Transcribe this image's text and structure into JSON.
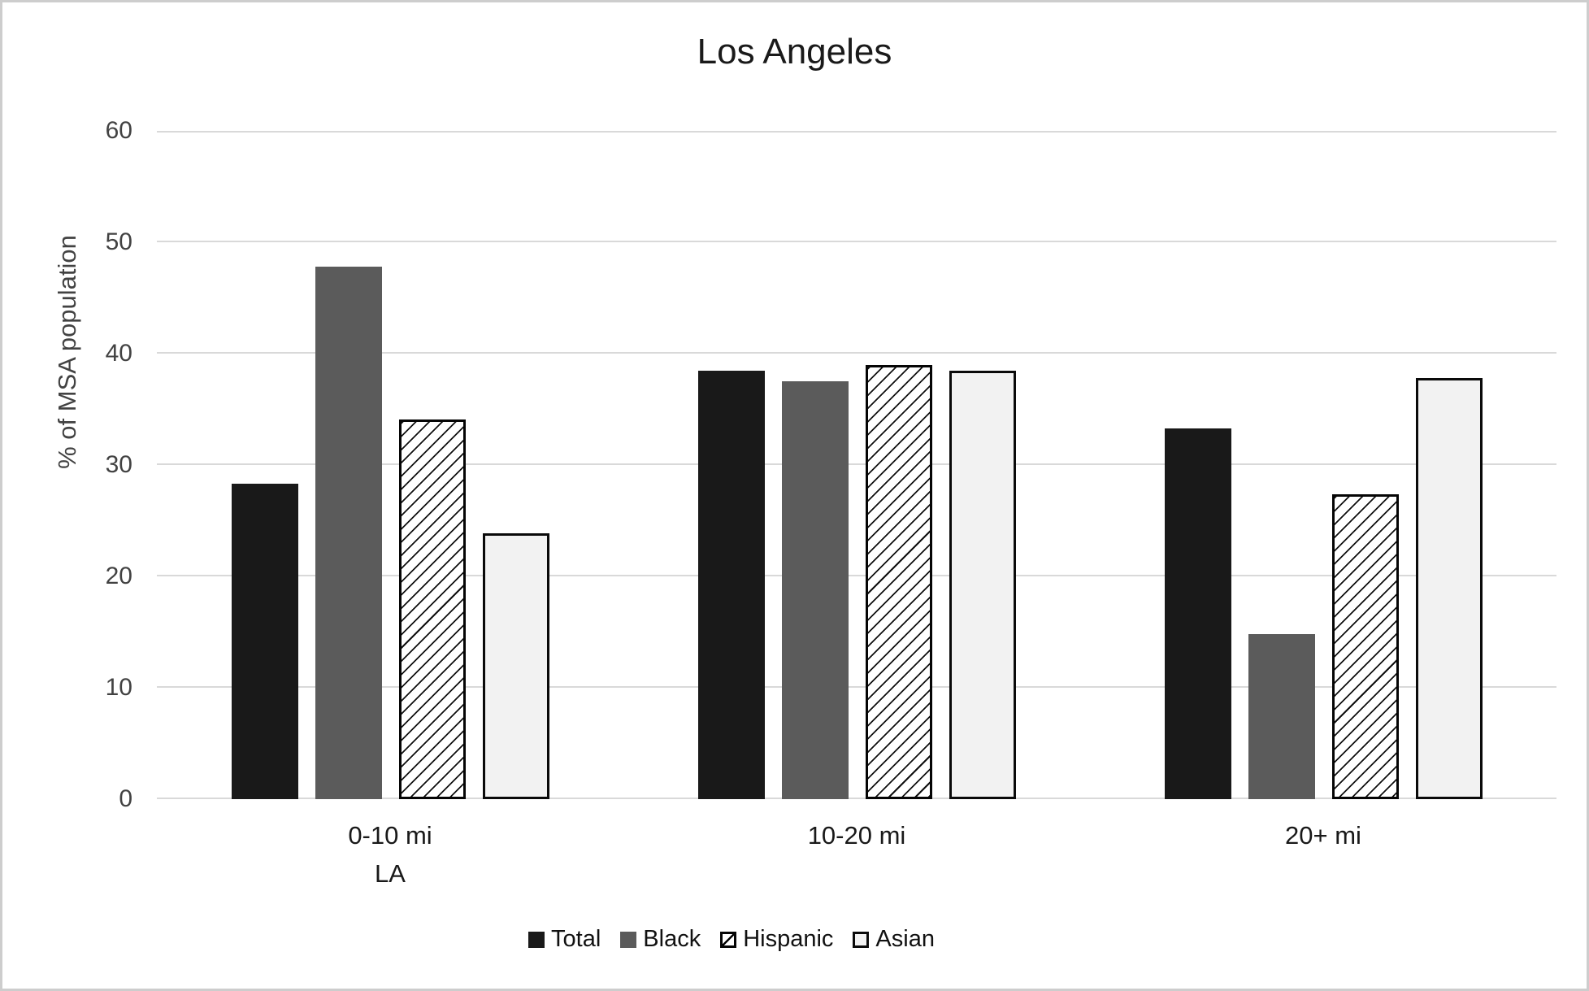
{
  "frame": {
    "background": "#ffffff",
    "border_color": "#cdcdcd"
  },
  "chart_data": {
    "type": "bar",
    "title": "Los Angeles",
    "categories": [
      "0-10 mi",
      "10-20 mi",
      "20+ mi"
    ],
    "category_sublabels": [
      "LA",
      "",
      ""
    ],
    "series": [
      {
        "name": "Total",
        "style": "solid",
        "fill": "#191919",
        "values": [
          28.3,
          38.5,
          33.3
        ]
      },
      {
        "name": "Black",
        "style": "solid",
        "fill": "#5b5b5b",
        "values": [
          47.8,
          37.5,
          14.8
        ]
      },
      {
        "name": "Hispanic",
        "style": "hatched",
        "fill": "#ffffff",
        "hatch_color": "#111111",
        "values": [
          34.1,
          39.0,
          27.4
        ]
      },
      {
        "name": "Asian",
        "style": "outlined",
        "fill": "#f2f2f2",
        "values": [
          23.9,
          38.5,
          37.8
        ]
      }
    ],
    "ylabel": "% of MSA population",
    "ylim": [
      0,
      60
    ],
    "yticks": [
      0,
      10,
      20,
      30,
      40,
      50,
      60
    ],
    "grid": "horizontal",
    "gridline_color": "#d9d9d9",
    "axis_text_color": "#424242",
    "label_text_color": "#191919",
    "bar_border_color": "#000000",
    "legend_position": "bottom",
    "legend_entries": [
      "Total",
      "Black",
      "Hispanic",
      "Asian"
    ]
  }
}
